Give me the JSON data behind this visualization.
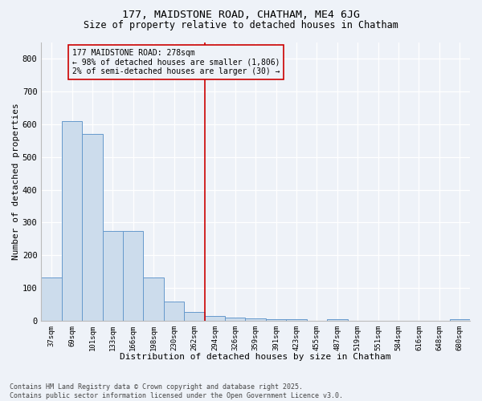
{
  "title_line1": "177, MAIDSTONE ROAD, CHATHAM, ME4 6JG",
  "title_line2": "Size of property relative to detached houses in Chatham",
  "xlabel": "Distribution of detached houses by size in Chatham",
  "ylabel": "Number of detached properties",
  "categories": [
    "37sqm",
    "69sqm",
    "101sqm",
    "133sqm",
    "166sqm",
    "198sqm",
    "230sqm",
    "262sqm",
    "294sqm",
    "326sqm",
    "359sqm",
    "391sqm",
    "423sqm",
    "455sqm",
    "487sqm",
    "519sqm",
    "551sqm",
    "584sqm",
    "616sqm",
    "648sqm",
    "680sqm"
  ],
  "values": [
    133,
    610,
    570,
    275,
    275,
    133,
    60,
    28,
    15,
    10,
    8,
    5,
    5,
    0,
    4,
    0,
    0,
    0,
    0,
    0,
    4
  ],
  "bar_color": "#ccdcec",
  "bar_edge_color": "#6699cc",
  "vline_x": 8.0,
  "vline_color": "#cc0000",
  "annotation_text": "177 MAIDSTONE ROAD: 278sqm\n← 98% of detached houses are smaller (1,806)\n2% of semi-detached houses are larger (30) →",
  "annotation_box_color": "#cc0000",
  "background_color": "#eef2f8",
  "ylim": [
    0,
    850
  ],
  "yticks": [
    0,
    100,
    200,
    300,
    400,
    500,
    600,
    700,
    800
  ],
  "footer_line1": "Contains HM Land Registry data © Crown copyright and database right 2025.",
  "footer_line2": "Contains public sector information licensed under the Open Government Licence v3.0."
}
